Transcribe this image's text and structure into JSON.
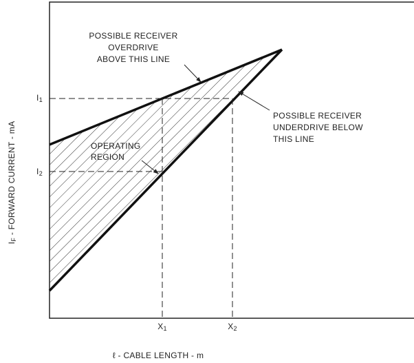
{
  "annotations": {
    "overdrive": [
      "POSSIBLE RECEIVER",
      "OVERDRIVE",
      "ABOVE THIS LINE"
    ],
    "underdrive": [
      "POSSIBLE RECEIVER",
      "UNDERDRIVE BELOW",
      "THIS LINE"
    ],
    "region": [
      "OPERATING",
      "REGION"
    ]
  },
  "y_ticks": [
    {
      "main": "I",
      "sub": "1"
    },
    {
      "main": "I",
      "sub": "2"
    }
  ],
  "x_ticks": [
    {
      "main": "X",
      "sub": "1"
    },
    {
      "main": "X",
      "sub": "2"
    }
  ],
  "y_label": {
    "main": "I",
    "sub": "F",
    "rest": " - FORWARD CURRENT - mA"
  },
  "x_label": "ℓ - CABLE LENGTH - m"
}
